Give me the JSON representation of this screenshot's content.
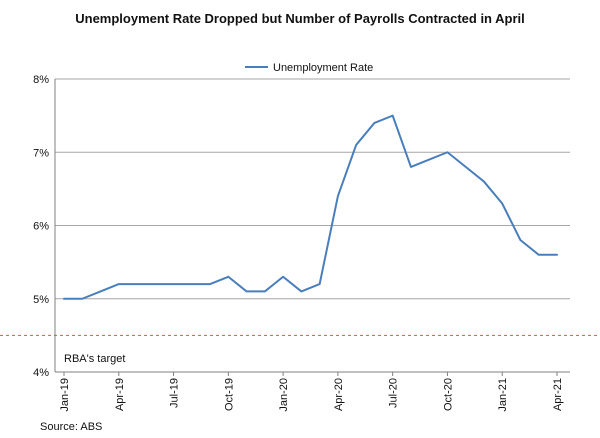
{
  "chart_data": {
    "type": "line",
    "title": "Unemployment Rate Dropped but Number of Payrolls Contracted in April",
    "xlabel": "",
    "ylabel": "",
    "grid": "horizontal",
    "legend_position": "top-center",
    "ylim": [
      4,
      8
    ],
    "y_ticks": [
      4,
      5,
      6,
      7,
      8
    ],
    "y_tick_labels": [
      "4%",
      "5%",
      "6%",
      "7%",
      "8%"
    ],
    "x": [
      "Jan-19",
      "Feb-19",
      "Mar-19",
      "Apr-19",
      "May-19",
      "Jun-19",
      "Jul-19",
      "Aug-19",
      "Sep-19",
      "Oct-19",
      "Nov-19",
      "Dec-19",
      "Jan-20",
      "Feb-20",
      "Mar-20",
      "Apr-20",
      "May-20",
      "Jun-20",
      "Jul-20",
      "Aug-20",
      "Sep-20",
      "Oct-20",
      "Nov-20",
      "Dec-20",
      "Jan-21",
      "Feb-21",
      "Mar-21",
      "Apr-21"
    ],
    "x_tick_labels": [
      "Jan-19",
      "Apr-19",
      "Jul-19",
      "Oct-19",
      "Jan-20",
      "Apr-20",
      "Jul-20",
      "Oct-20",
      "Jan-21",
      "Apr-21"
    ],
    "series": [
      {
        "name": "Unemployment Rate",
        "color": "#4a7ebb",
        "values": [
          5.0,
          5.0,
          5.1,
          5.2,
          5.2,
          5.2,
          5.2,
          5.2,
          5.2,
          5.3,
          5.1,
          5.1,
          5.3,
          5.1,
          5.2,
          6.4,
          7.1,
          7.4,
          7.5,
          6.8,
          6.9,
          7.0,
          6.8,
          6.6,
          6.3,
          5.8,
          5.6,
          5.6
        ]
      }
    ],
    "reference_line": {
      "label": "RBA's target",
      "value": 4.5,
      "color": "#d9534f"
    },
    "source": "Source: ABS"
  }
}
